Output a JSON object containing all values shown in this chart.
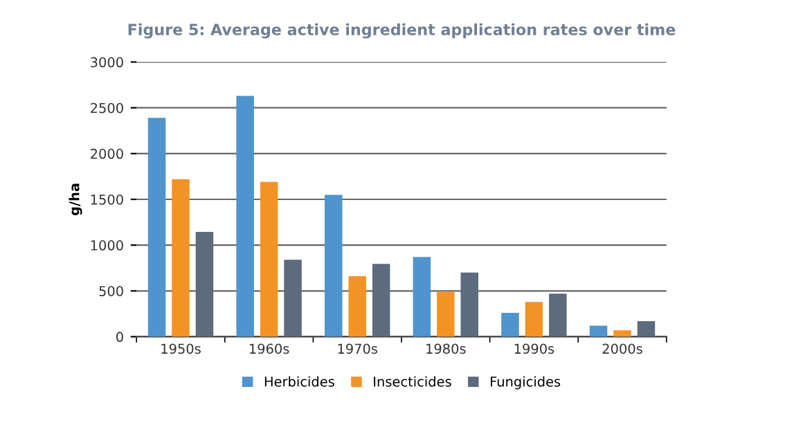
{
  "chart_data": {
    "type": "bar",
    "title": "Figure 5: Average active ingredient application rates over time",
    "ylabel": "g/ha",
    "categories": [
      "1950s",
      "1960s",
      "1970s",
      "1980s",
      "1990s",
      "2000s"
    ],
    "series": [
      {
        "name": "Herbicides",
        "color": "#4f94cf",
        "values": [
          2390,
          2630,
          1550,
          870,
          260,
          120
        ]
      },
      {
        "name": "Insecticides",
        "color": "#f39325",
        "values": [
          1720,
          1690,
          660,
          490,
          380,
          70
        ]
      },
      {
        "name": "Fungicides",
        "color": "#5d6b7e",
        "values": [
          1145,
          840,
          795,
          700,
          470,
          170
        ]
      }
    ],
    "ylim": [
      0,
      3000
    ],
    "yticks": [
      0,
      500,
      1000,
      1500,
      2000,
      2500,
      3000
    ],
    "grid": "y",
    "legend": "bottom"
  }
}
